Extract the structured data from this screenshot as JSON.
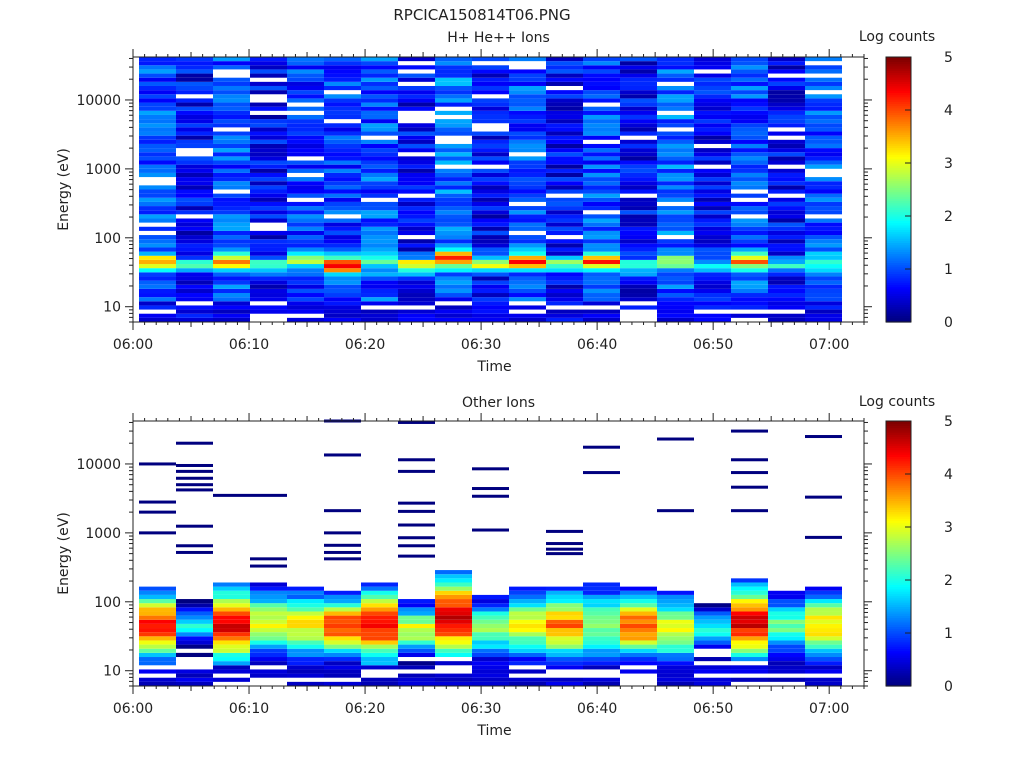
{
  "page_title": "RPCICA150814T06.PNG",
  "colormap": [
    "#00007f",
    "#0000ff",
    "#007fff",
    "#00ffff",
    "#7fff7f",
    "#ffff00",
    "#ff7f00",
    "#ff0000",
    "#7f0000"
  ],
  "chart_data": [
    {
      "type": "heatmap",
      "title": "H+ He++ Ions",
      "xlabel": "Time",
      "ylabel": "Energy (eV)",
      "x_ticks": [
        "06:00",
        "06:10",
        "06:20",
        "06:30",
        "06:40",
        "06:50",
        "07:00"
      ],
      "y_ticks": [
        "10",
        "100",
        "1000",
        "10000"
      ],
      "y_scale": "log",
      "ylim": [
        6,
        42000
      ],
      "xlim_minutes": [
        0,
        63
      ],
      "colorbar_label": "Log counts",
      "colorbar_ticks": [
        "0",
        "1",
        "2",
        "3",
        "4",
        "5"
      ],
      "colorbar_range": [
        0,
        5
      ],
      "time_bin_count": 19,
      "energy_bin_count": 64,
      "peak_energy_ev": [
        45,
        40,
        45,
        40,
        45,
        40,
        45,
        40,
        50,
        40,
        45,
        40,
        45,
        40,
        45,
        40,
        45,
        40,
        45
      ],
      "peak_log_counts": [
        2.6,
        1.6,
        2.4,
        1.5,
        1.6,
        3.9,
        1.2,
        2.7,
        3.1,
        2.3,
        3.0,
        2.0,
        3.3,
        1.7,
        1.5,
        1.2,
        2.6,
        1.5,
        1.3
      ],
      "background_log_counts": [
        1.0,
        0.6,
        1.0,
        0.6,
        0.9,
        0.9,
        1.0,
        0.6,
        1.2,
        0.6,
        1.0,
        0.6,
        1.0,
        0.6,
        1.1,
        0.6,
        1.0,
        0.6,
        1.0
      ]
    },
    {
      "type": "heatmap",
      "title": "Other Ions",
      "xlabel": "Time",
      "ylabel": "Energy (eV)",
      "x_ticks": [
        "06:00",
        "06:10",
        "06:20",
        "06:30",
        "06:40",
        "06:50",
        "07:00"
      ],
      "y_ticks": [
        "10",
        "100",
        "1000",
        "10000"
      ],
      "y_scale": "log",
      "ylim": [
        6,
        42000
      ],
      "xlim_minutes": [
        0,
        63
      ],
      "colorbar_label": "Log counts",
      "colorbar_ticks": [
        "0",
        "1",
        "2",
        "3",
        "4",
        "5"
      ],
      "colorbar_range": [
        0,
        5
      ],
      "time_bin_count": 19,
      "energy_bin_count": 64,
      "peak_energy_ev": [
        45,
        45,
        45,
        50,
        45,
        45,
        45,
        40,
        60,
        40,
        45,
        45,
        45,
        45,
        40,
        40,
        50,
        45,
        45
      ],
      "peak_log_counts": [
        4.3,
        2.0,
        4.4,
        3.0,
        3.1,
        4.2,
        4.3,
        3.0,
        4.6,
        2.6,
        3.0,
        3.8,
        2.6,
        4.0,
        3.0,
        2.0,
        4.5,
        2.5,
        3.3
      ],
      "spread_decades": [
        0.38,
        0.18,
        0.42,
        0.36,
        0.38,
        0.32,
        0.42,
        0.26,
        0.48,
        0.3,
        0.36,
        0.38,
        0.4,
        0.36,
        0.38,
        0.2,
        0.42,
        0.3,
        0.38
      ],
      "sparse_lines_ev": [
        [
          10000,
          2800,
          2000,
          1000
        ],
        [
          20000,
          9500,
          7800,
          6200,
          5000,
          4200,
          1250,
          650,
          520
        ],
        [
          3500
        ],
        [
          3500,
          420,
          330
        ],
        [],
        [
          42000,
          13500,
          2100,
          1000,
          660,
          520,
          420
        ],
        [],
        [
          40000,
          11500,
          7800,
          2700,
          2050,
          1300,
          850,
          650,
          460
        ],
        [],
        [
          8500,
          4400,
          3400,
          1100
        ],
        [],
        [
          1050,
          700,
          580,
          500
        ],
        [
          17500,
          7500
        ],
        [],
        [
          23000,
          2100
        ],
        [],
        [
          30000,
          11500,
          7500,
          4600,
          2100
        ],
        [],
        [
          25000,
          3300,
          860
        ]
      ]
    }
  ]
}
